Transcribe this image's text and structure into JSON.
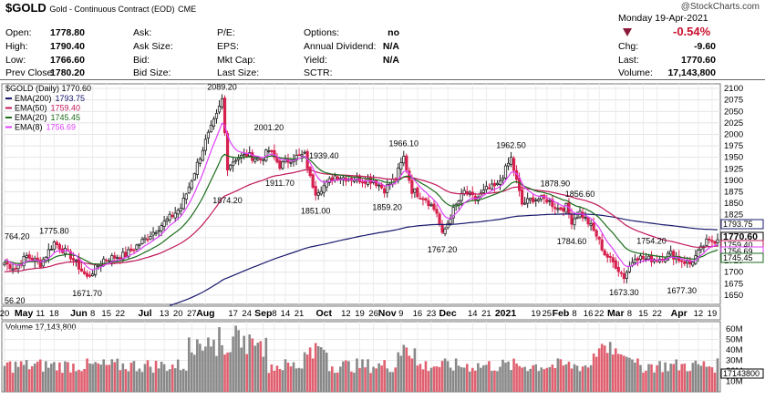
{
  "header": {
    "symbol": "$GOLD",
    "name": "Gold - Continuous Contract (EOD)",
    "exchange": "CME",
    "watermark": "@StockCharts.com",
    "date": "Monday  19-Apr-2021",
    "change_pct": "-0.54%",
    "quote_rows": [
      {
        "l1": "Open:",
        "v1": "1778.80",
        "l2": "Ask:",
        "v2": "",
        "l3": "P/E:",
        "v3": "",
        "l4": "Options:",
        "v4": "no",
        "l5": "",
        "v5": ""
      },
      {
        "l1": "High:",
        "v1": "1790.40",
        "l2": "Ask Size:",
        "v2": "",
        "l3": "EPS:",
        "v3": "",
        "l4": "Annual Dividend:",
        "v4": "N/A",
        "l5": "Chg:",
        "v5": "-9.60"
      },
      {
        "l1": "Low:",
        "v1": "1766.60",
        "l2": "Bid:",
        "v2": "",
        "l3": "Mkt Cap:",
        "v3": "",
        "l4": "Yield:",
        "v4": "N/A",
        "l5": "Last:",
        "v5": "1770.60"
      },
      {
        "l1": "Prev Close:",
        "v1": "1780.20",
        "l2": "Bid Size:",
        "v2": "",
        "l3": "Last Size:",
        "v3": "",
        "l4": "SCTR:",
        "v4": "",
        "l5": "Volume:",
        "v5": "17,143,800"
      }
    ]
  },
  "colors": {
    "up": "#222222",
    "down": "#d6204e",
    "ema200": "#1a1a6e",
    "ema50": "#c2185b",
    "ema20": "#1b6b1b",
    "ema8": "#e040fb",
    "volUp": "#888888",
    "volDown": "#e06070"
  },
  "chart_data": {
    "type": "line",
    "title": "$GOLD (Daily) 1770.60",
    "legend": [
      {
        "name": "EMA(200)",
        "value": "1793.75",
        "color": "#1a1a6e"
      },
      {
        "name": "EMA(50)",
        "value": "1759.40",
        "color": "#c2185b"
      },
      {
        "name": "EMA(20)",
        "value": "1745.45",
        "color": "#1b6b1b"
      },
      {
        "name": "EMA(8)",
        "value": "1756.69",
        "color": "#e040fb"
      }
    ],
    "ylim": [
      1630,
      2110
    ],
    "y_ticks": [
      1650,
      1675,
      1700,
      1725,
      1750,
      1775,
      1800,
      1825,
      1850,
      1875,
      1900,
      1925,
      1950,
      1975,
      2000,
      2025,
      2050,
      2075,
      2100
    ],
    "x_tick_labels": [
      {
        "t": "20",
        "i": 0
      },
      {
        "t": "May",
        "i": 7,
        "b": true
      },
      {
        "t": "11",
        "i": 13
      },
      {
        "t": "18",
        "i": 18
      },
      {
        "t": "Jun",
        "i": 27,
        "b": true
      },
      {
        "t": "8",
        "i": 32
      },
      {
        "t": "15",
        "i": 37
      },
      {
        "t": "22",
        "i": 42
      },
      {
        "t": "Jul",
        "i": 51,
        "b": true
      },
      {
        "t": "13",
        "i": 58
      },
      {
        "t": "20",
        "i": 63
      },
      {
        "t": "27",
        "i": 68
      },
      {
        "t": "Aug",
        "i": 73,
        "b": true
      },
      {
        "t": "17",
        "i": 83
      },
      {
        "t": "24",
        "i": 88
      },
      {
        "t": "Sep",
        "i": 94,
        "b": true
      },
      {
        "t": "8",
        "i": 98
      },
      {
        "t": "14",
        "i": 102
      },
      {
        "t": "21",
        "i": 107
      },
      {
        "t": "Oct",
        "i": 116,
        "b": true
      },
      {
        "t": "12",
        "i": 124
      },
      {
        "t": "19",
        "i": 129
      },
      {
        "t": "26",
        "i": 134
      },
      {
        "t": "Nov",
        "i": 139,
        "b": true
      },
      {
        "t": "9",
        "i": 144
      },
      {
        "t": "16",
        "i": 150
      },
      {
        "t": "23",
        "i": 155
      },
      {
        "t": "Dec",
        "i": 161,
        "b": true
      },
      {
        "t": "14",
        "i": 170
      },
      {
        "t": "21",
        "i": 175
      },
      {
        "t": "2021",
        "i": 182,
        "b": true
      },
      {
        "t": "19",
        "i": 193
      },
      {
        "t": "25",
        "i": 197
      },
      {
        "t": "Feb",
        "i": 202,
        "b": true
      },
      {
        "t": "8",
        "i": 207
      },
      {
        "t": "16",
        "i": 212
      },
      {
        "t": "22",
        "i": 216
      },
      {
        "t": "Mar",
        "i": 222,
        "b": true
      },
      {
        "t": "8",
        "i": 227
      },
      {
        "t": "15",
        "i": 232
      },
      {
        "t": "22",
        "i": 237
      },
      {
        "t": "Apr",
        "i": 245,
        "b": true
      },
      {
        "t": "12",
        "i": 252
      },
      {
        "t": "19",
        "i": 257
      }
    ],
    "annotations": [
      {
        "text": "2089.20",
        "i": 79,
        "v": 2089.2
      },
      {
        "text": "2001.20",
        "i": 96,
        "v": 2001.2
      },
      {
        "text": "1939.40",
        "i": 116,
        "v": 1939.4
      },
      {
        "text": "1966.10",
        "i": 145,
        "v": 1966.1
      },
      {
        "text": "1962.50",
        "i": 184,
        "v": 1962.5
      },
      {
        "text": "1878.90",
        "i": 200,
        "v": 1878.9
      },
      {
        "text": "1856.60",
        "i": 209,
        "v": 1856.6
      },
      {
        "text": "1775.80",
        "i": 18,
        "v": 1775.8
      },
      {
        "text": "764.20",
        "i": 0,
        "v": 1764.2
      },
      {
        "text": "1754.20",
        "i": 235,
        "v": 1754.2
      },
      {
        "text": "1874.20",
        "i": 81,
        "v": 1874.2,
        "below": true
      },
      {
        "text": "1911.70",
        "i": 100,
        "v": 1911.7,
        "below": true
      },
      {
        "text": "1851.00",
        "i": 113,
        "v": 1851,
        "below": true
      },
      {
        "text": "1859.20",
        "i": 139,
        "v": 1859.2,
        "below": true
      },
      {
        "text": "1767.20",
        "i": 159,
        "v": 1767.2,
        "below": true
      },
      {
        "text": "1784.60",
        "i": 206,
        "v": 1784.6,
        "below": true
      },
      {
        "text": "1671.70",
        "i": 30,
        "v": 1671.7,
        "below": true
      },
      {
        "text": "56.20",
        "i": 0,
        "v": 1656.2,
        "below": true
      },
      {
        "text": "1673.30",
        "i": 225,
        "v": 1673.3,
        "below": true
      },
      {
        "text": "1677.30",
        "i": 246,
        "v": 1677.3,
        "below": true
      }
    ],
    "price_tags": [
      {
        "text": "1793.75",
        "v": 1793.75,
        "color": "#1a1a6e",
        "bold": false
      },
      {
        "text": "1770.60",
        "v": 1770.6,
        "color": "#000000",
        "bold": true
      },
      {
        "text": "1759.40",
        "v": 1759.4,
        "color": "#c2185b",
        "bold": false
      },
      {
        "text": "1756.69",
        "v": 1756.69,
        "color": "#e040fb",
        "bold": false
      },
      {
        "text": "1745.45",
        "v": 1745.45,
        "color": "#1b6b1b",
        "bold": false
      }
    ],
    "pivots": [
      [
        0,
        1720
      ],
      [
        4,
        1708
      ],
      [
        8,
        1735
      ],
      [
        13,
        1718
      ],
      [
        18,
        1765
      ],
      [
        24,
        1735
      ],
      [
        30,
        1688
      ],
      [
        36,
        1728
      ],
      [
        44,
        1738
      ],
      [
        51,
        1772
      ],
      [
        58,
        1808
      ],
      [
        64,
        1840
      ],
      [
        68,
        1902
      ],
      [
        73,
        1985
      ],
      [
        77,
        2040
      ],
      [
        79,
        2075
      ],
      [
        81,
        1930
      ],
      [
        84,
        1948
      ],
      [
        88,
        1955
      ],
      [
        93,
        1945
      ],
      [
        96,
        1965
      ],
      [
        100,
        1932
      ],
      [
        105,
        1950
      ],
      [
        109,
        1955
      ],
      [
        111,
        1905
      ],
      [
        113,
        1875
      ],
      [
        117,
        1892
      ],
      [
        120,
        1910
      ],
      [
        124,
        1905
      ],
      [
        129,
        1902
      ],
      [
        134,
        1900
      ],
      [
        138,
        1880
      ],
      [
        142,
        1905
      ],
      [
        145,
        1950
      ],
      [
        148,
        1878
      ],
      [
        153,
        1860
      ],
      [
        157,
        1830
      ],
      [
        159,
        1780
      ],
      [
        163,
        1835
      ],
      [
        167,
        1875
      ],
      [
        171,
        1858
      ],
      [
        175,
        1880
      ],
      [
        179,
        1888
      ],
      [
        184,
        1948
      ],
      [
        188,
        1848
      ],
      [
        192,
        1860
      ],
      [
        197,
        1858
      ],
      [
        201,
        1838
      ],
      [
        204,
        1842
      ],
      [
        206,
        1812
      ],
      [
        209,
        1830
      ],
      [
        212,
        1808
      ],
      [
        215,
        1780
      ],
      [
        218,
        1740
      ],
      [
        222,
        1715
      ],
      [
        225,
        1690
      ],
      [
        229,
        1735
      ],
      [
        233,
        1728
      ],
      [
        238,
        1730
      ],
      [
        242,
        1740
      ],
      [
        245,
        1728
      ],
      [
        249,
        1718
      ],
      [
        252,
        1742
      ],
      [
        255,
        1765
      ],
      [
        259,
        1770.6
      ]
    ],
    "volume": {
      "label": "Volume 17,143,800",
      "y_ticks": [
        "60M",
        "50M",
        "40M",
        "30M",
        "20M",
        "10M"
      ],
      "y_values": [
        60,
        50,
        40,
        30,
        20,
        10
      ],
      "ylim": [
        0,
        67
      ],
      "last": "17143800"
    }
  }
}
